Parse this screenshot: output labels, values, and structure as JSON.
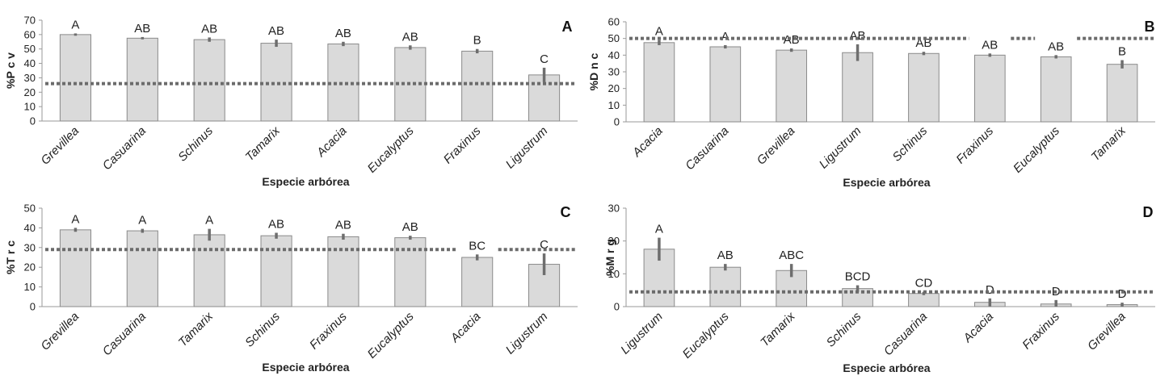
{
  "chart_data": [
    {
      "panel": "A",
      "type": "bar",
      "ylabel": "%P c v",
      "xlabel": "Especie arbórea",
      "ylim": [
        0,
        70
      ],
      "yticks": [
        0,
        10,
        20,
        30,
        40,
        50,
        60,
        70
      ],
      "reference_line": 26,
      "categories": [
        "Grevillea",
        "Casuarina",
        "Schinus",
        "Tamarix",
        "Acacia",
        "Eucalyptus",
        "Fraxinus",
        "Ligustrum"
      ],
      "values": [
        60,
        57.5,
        56.5,
        54,
        53.5,
        51,
        48.5,
        32
      ],
      "errors": [
        0.8,
        0.8,
        1.5,
        2.5,
        1.5,
        1.5,
        1.5,
        5
      ],
      "letters": [
        "A",
        "AB",
        "AB",
        "AB",
        "AB",
        "AB",
        "B",
        "C"
      ],
      "line_gaps": []
    },
    {
      "panel": "B",
      "type": "bar",
      "ylabel": "%D n c",
      "xlabel": "Especie arbórea",
      "ylim": [
        0,
        60
      ],
      "yticks": [
        0,
        10,
        20,
        30,
        40,
        50,
        60
      ],
      "reference_line": 50,
      "categories": [
        "Acacia",
        "Casuarina",
        "Grevillea",
        "Ligustrum",
        "Schinus",
        "Fraxinus",
        "Eucalyptus",
        "Tamarix"
      ],
      "values": [
        47.5,
        45,
        43,
        41.5,
        41,
        40,
        39,
        34.5
      ],
      "errors": [
        1.5,
        1,
        1,
        5,
        1,
        1,
        1,
        2.5
      ],
      "letters": [
        "A",
        "A",
        "AB",
        "AB",
        "AB",
        "AB",
        "AB",
        "B"
      ],
      "line_gaps": [
        5,
        6
      ]
    },
    {
      "panel": "C",
      "type": "bar",
      "ylabel": "%T r c",
      "xlabel": "Especie arbórea",
      "ylim": [
        0,
        50
      ],
      "yticks": [
        0,
        10,
        20,
        30,
        40,
        50
      ],
      "reference_line": 29,
      "categories": [
        "Grevillea",
        "Casuarina",
        "Tamarix",
        "Schinus",
        "Fraxinus",
        "Eucalyptus",
        "Acacia",
        "Ligustrum"
      ],
      "values": [
        39,
        38.5,
        36.5,
        36,
        35.5,
        35,
        25,
        21.5
      ],
      "errors": [
        1,
        1,
        3,
        1.5,
        1.5,
        1,
        1.5,
        5.5
      ],
      "letters": [
        "A",
        "A",
        "A",
        "AB",
        "AB",
        "AB",
        "BC",
        "C"
      ],
      "line_gaps": [
        6
      ]
    },
    {
      "panel": "D",
      "type": "bar",
      "ylabel": "%M r g",
      "xlabel": "Especie arbórea",
      "ylim": [
        0,
        30
      ],
      "yticks": [
        0,
        10,
        20,
        30
      ],
      "reference_line": 4.5,
      "categories": [
        "Ligustrum",
        "Eucalyptus",
        "Tamarix",
        "Schinus",
        "Casuarina",
        "Acacia",
        "Fraxinus",
        "Grevillea"
      ],
      "values": [
        17.5,
        12,
        11,
        5.5,
        4,
        1.3,
        0.8,
        0.6
      ],
      "errors": [
        3.5,
        1,
        2,
        1,
        0.5,
        1.2,
        1.2,
        0.6
      ],
      "letters": [
        "A",
        "AB",
        "ABC",
        "BCD",
        "CD",
        "D",
        "D",
        "D"
      ],
      "line_gaps": []
    }
  ],
  "colors": {
    "bar_fill": "#dadada",
    "bar_stroke": "#8a8a8a",
    "error_bar": "#6e6e6e",
    "reference_line": "#6b6b6b",
    "axis": "#9a9a9a",
    "text": "#222222"
  }
}
